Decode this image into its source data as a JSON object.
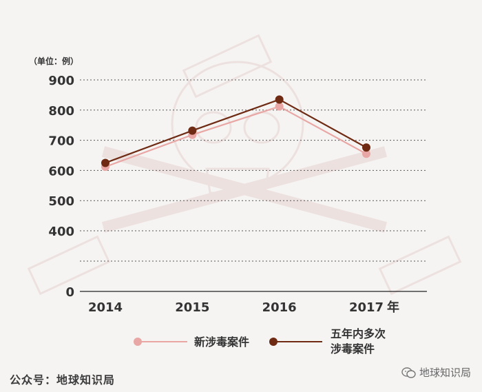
{
  "chart_data": {
    "type": "line",
    "unit_label": "（单位：例）",
    "categories": [
      "2014",
      "2015",
      "2016",
      "2017"
    ],
    "x_suffix": "年",
    "yticks": [
      "0",
      "400",
      "500",
      "600",
      "700",
      "800",
      "900"
    ],
    "series": [
      {
        "name": "新涉毒案件",
        "values": [
          612,
          718,
          812,
          655
        ],
        "color": "#e8a7a4"
      },
      {
        "name": "五年内多次涉毒案件",
        "values": [
          625,
          732,
          835,
          676
        ],
        "color": "#6e2a12"
      }
    ],
    "legend": {
      "position": "bottom",
      "item1": "新涉毒案件",
      "item2_line1": "五年内多次",
      "item2_line2": "涉毒案件"
    },
    "grid": true,
    "axis_break": true
  },
  "footer": {
    "source": "公众号：地球知识局",
    "watermark": "地球知识局",
    "watermark_icon": "wechat-icon"
  }
}
